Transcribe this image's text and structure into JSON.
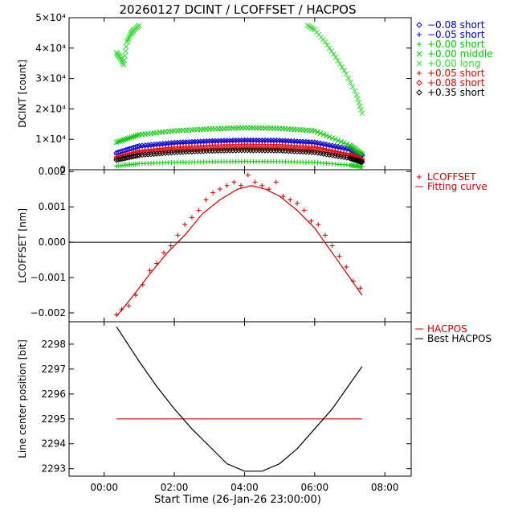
{
  "title": "20260127 DCINT / LCOFFSET / HACPOS",
  "x_axis": {
    "label": "Start Time (26-Jan-26 23:00:00)",
    "range": [
      -1.0,
      8.75
    ],
    "ticks": [
      {
        "value": 0,
        "label": "00:00"
      },
      {
        "value": 2,
        "label": "02:00"
      },
      {
        "value": 4,
        "label": "04:00"
      },
      {
        "value": 6,
        "label": "06:00"
      },
      {
        "value": 8,
        "label": "08:00"
      }
    ]
  },
  "chart_data": [
    {
      "type": "scatter",
      "title": "DCINT",
      "ylabel": "DCINT [count]",
      "ylim": [
        0,
        50000
      ],
      "ytick_labels": [
        {
          "value": 0,
          "label": "0"
        },
        {
          "value": 10000,
          "label": "1×10⁴"
        },
        {
          "value": 20000,
          "label": "2×10⁴"
        },
        {
          "value": 30000,
          "label": "3×10⁴"
        },
        {
          "value": 40000,
          "label": "4×10⁴"
        },
        {
          "value": 50000,
          "label": "5×10⁴"
        }
      ],
      "legend_position": "right",
      "series": [
        {
          "name": "−0.08 short",
          "color": "#0000cc",
          "marker": "diamond",
          "x": [
            0.35,
            1.0,
            2.0,
            3.0,
            4.0,
            5.0,
            6.0,
            7.0,
            7.35
          ],
          "y": [
            5500,
            7800,
            8900,
            9400,
            9700,
            9600,
            9000,
            6800,
            4800
          ]
        },
        {
          "name": "−0.05 short",
          "color": "#0000ff",
          "marker": "plus",
          "x": [
            0.35,
            1.0,
            2.0,
            3.0,
            4.0,
            5.0,
            6.0,
            7.0,
            7.35
          ],
          "y": [
            5000,
            7300,
            8500,
            9100,
            9400,
            9300,
            8600,
            6300,
            4300
          ]
        },
        {
          "name": "+0.00 short",
          "color": "#00cc00",
          "marker": "plus",
          "x": [
            0.35,
            1.0,
            2.0,
            3.0,
            4.0,
            5.0,
            6.0,
            7.0,
            7.35
          ],
          "y": [
            1200,
            2000,
            2400,
            2600,
            2700,
            2650,
            2400,
            1500,
            1000
          ]
        },
        {
          "name": "+0.00 middle",
          "color": "#00cc00",
          "marker": "cross",
          "x": [
            0.35,
            1.0,
            2.0,
            3.0,
            4.0,
            5.0,
            6.0,
            7.0,
            7.35
          ],
          "y": [
            9000,
            11500,
            12800,
            13400,
            13800,
            13600,
            12800,
            8000,
            5000
          ]
        },
        {
          "name": "+0.00 long",
          "color": "#33dd33",
          "marker": "cross",
          "x": [
            0.35,
            0.45,
            0.55,
            0.65,
            0.75,
            0.85,
            1.0,
            5.8,
            6.0,
            6.3,
            6.6,
            6.9,
            7.2,
            7.35
          ],
          "y": [
            38500,
            37000,
            34500,
            42000,
            44500,
            46000,
            47500,
            47500,
            46000,
            42000,
            37000,
            31500,
            24500,
            18500
          ]
        },
        {
          "name": "+0.05 short",
          "color": "#ee0000",
          "marker": "plus",
          "x": [
            0.35,
            1.0,
            2.0,
            3.0,
            4.0,
            5.0,
            6.0,
            7.0,
            7.35
          ],
          "y": [
            4300,
            6300,
            7500,
            8100,
            8400,
            8300,
            7600,
            5200,
            3600
          ]
        },
        {
          "name": "+0.08 short",
          "color": "#ee0000",
          "marker": "diamond",
          "x": [
            0.35,
            1.0,
            2.0,
            3.0,
            4.0,
            5.0,
            6.0,
            7.0,
            7.35
          ],
          "y": [
            3800,
            5600,
            6600,
            7100,
            7400,
            7300,
            6700,
            4500,
            3100
          ]
        },
        {
          "name": "+0.35 short",
          "color": "#000000",
          "marker": "diamond",
          "x": [
            0.35,
            1.0,
            2.0,
            3.0,
            4.0,
            5.0,
            6.0,
            7.0,
            7.35
          ],
          "y": [
            3200,
            4800,
            5700,
            6200,
            6400,
            6300,
            5700,
            3800,
            2500
          ]
        }
      ]
    },
    {
      "type": "scatter",
      "title": "LCOFFSET",
      "ylabel": "LCOFFSET [nm]",
      "ylim": [
        -0.00225,
        0.00205
      ],
      "ytick_labels": [
        {
          "value": -0.002,
          "label": "−0.002"
        },
        {
          "value": -0.001,
          "label": "−0.001"
        },
        {
          "value": 0.0,
          "label": "0.000"
        },
        {
          "value": 0.001,
          "label": "0.001"
        },
        {
          "value": 0.002,
          "label": "0.002"
        }
      ],
      "legend_position": "right",
      "zero_line": true,
      "series": [
        {
          "name": "LCOFFSET",
          "color": "#cc0000",
          "marker": "plus",
          "x": [
            0.35,
            0.5,
            0.7,
            0.9,
            1.1,
            1.3,
            1.5,
            1.7,
            1.9,
            2.1,
            2.3,
            2.5,
            2.7,
            2.9,
            3.1,
            3.3,
            3.5,
            3.7,
            3.9,
            4.1,
            4.3,
            4.5,
            4.7,
            4.9,
            5.1,
            5.3,
            5.5,
            5.7,
            5.9,
            6.1,
            6.3,
            6.5,
            6.7,
            6.9,
            7.1,
            7.3
          ],
          "y": [
            -0.00205,
            -0.0019,
            -0.0018,
            -0.0015,
            -0.0012,
            -0.0008,
            -0.0006,
            -0.0003,
            -0.0001,
            0.0002,
            0.0005,
            0.0007,
            0.0009,
            0.0012,
            0.0014,
            0.0015,
            0.0016,
            0.0017,
            0.0016,
            0.0019,
            0.0017,
            0.0016,
            0.0015,
            0.0017,
            0.0013,
            0.0012,
            0.0011,
            0.0009,
            0.0006,
            0.0005,
            0.0002,
            -0.0001,
            -0.0004,
            -0.0007,
            -0.0011,
            -0.0013
          ]
        },
        {
          "name": "Fitting curve",
          "color": "#cc0000",
          "marker": "line",
          "x": [
            0.35,
            0.8,
            1.3,
            1.8,
            2.3,
            2.8,
            3.3,
            3.8,
            4.2,
            4.6,
            5.0,
            5.5,
            6.0,
            6.5,
            7.0,
            7.35
          ],
          "y": [
            -0.0021,
            -0.00155,
            -0.0009,
            -0.0003,
            0.0002,
            0.0008,
            0.0012,
            0.0015,
            0.0016,
            0.0015,
            0.0013,
            0.0009,
            0.0004,
            -0.0003,
            -0.001,
            -0.0015
          ]
        }
      ]
    },
    {
      "type": "line",
      "title": "HACPOS",
      "ylabel": "Line center position [bit]",
      "ylim": [
        2292.7,
        2298.9
      ],
      "ytick_labels": [
        {
          "value": 2293,
          "label": "2293"
        },
        {
          "value": 2294,
          "label": "2294"
        },
        {
          "value": 2295,
          "label": "2295"
        },
        {
          "value": 2296,
          "label": "2296"
        },
        {
          "value": 2297,
          "label": "2297"
        },
        {
          "value": 2298,
          "label": "2298"
        }
      ],
      "legend_position": "right",
      "series": [
        {
          "name": "HACPOS",
          "color": "#cc0000",
          "x": [
            0.35,
            7.35
          ],
          "y": [
            2295.0,
            2295.0
          ]
        },
        {
          "name": "Best HACPOS",
          "color": "#000000",
          "x": [
            0.35,
            1.0,
            1.5,
            2.0,
            2.5,
            3.0,
            3.5,
            4.0,
            4.5,
            5.0,
            5.5,
            6.0,
            6.5,
            7.0,
            7.35
          ],
          "y": [
            2298.7,
            2297.3,
            2296.3,
            2295.4,
            2294.6,
            2293.9,
            2293.2,
            2292.9,
            2292.9,
            2293.2,
            2293.8,
            2294.6,
            2295.4,
            2296.4,
            2297.1
          ]
        }
      ]
    }
  ]
}
